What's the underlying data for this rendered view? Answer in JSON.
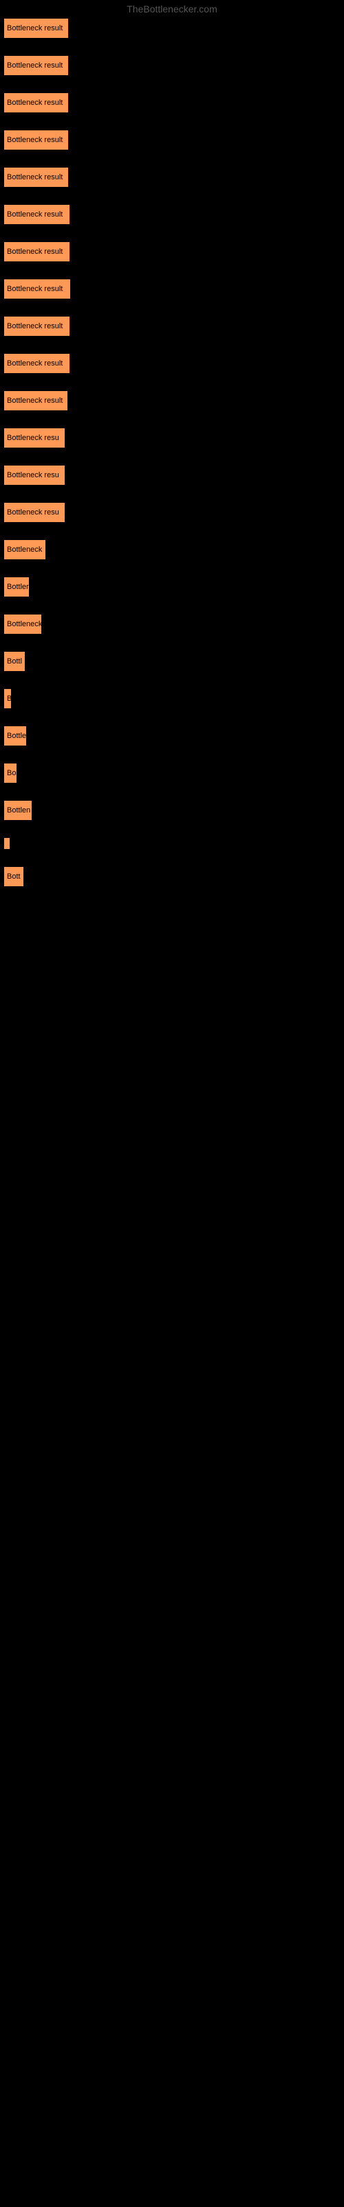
{
  "watermark": "TheBottlenecker.com",
  "chart": {
    "type": "bar",
    "background_color": "#000000",
    "bar_color": "#ff9955",
    "bar_border_color": "#000000",
    "text_color": "#000000",
    "font_size": 11,
    "bar_spacing": 24,
    "bars": [
      {
        "label": "Bottleneck result",
        "width": 95
      },
      {
        "label": "Bottleneck result",
        "width": 95
      },
      {
        "label": "Bottleneck result",
        "width": 95
      },
      {
        "label": "Bottleneck result",
        "width": 95
      },
      {
        "label": "Bottleneck result",
        "width": 95
      },
      {
        "label": "Bottleneck result",
        "width": 97
      },
      {
        "label": "Bottleneck result",
        "width": 97
      },
      {
        "label": "Bottleneck result",
        "width": 98
      },
      {
        "label": "Bottleneck result",
        "width": 97
      },
      {
        "label": "Bottleneck result",
        "width": 97
      },
      {
        "label": "Bottleneck result",
        "width": 94
      },
      {
        "label": "Bottleneck resu",
        "width": 90
      },
      {
        "label": "Bottleneck resu",
        "width": 90
      },
      {
        "label": "Bottleneck resu",
        "width": 90
      },
      {
        "label": "Bottleneck",
        "width": 62
      },
      {
        "label": "Bottler",
        "width": 38
      },
      {
        "label": "Bottleneck",
        "width": 56
      },
      {
        "label": "Bottl",
        "width": 32
      },
      {
        "label": "B",
        "width": 12
      },
      {
        "label": "Bottle",
        "width": 34
      },
      {
        "label": "Bo",
        "width": 20
      },
      {
        "label": "Bottlen",
        "width": 42
      },
      {
        "label": "",
        "width": 4
      },
      {
        "label": "Bott",
        "width": 30
      }
    ]
  }
}
